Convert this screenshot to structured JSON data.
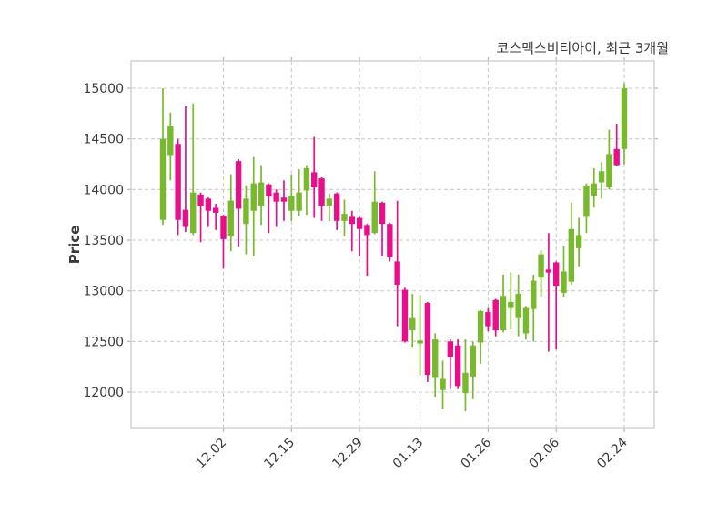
{
  "chart_data": {
    "type": "candlestick",
    "title": "코스맥스비티아이, 최근 3개월",
    "ylabel": "Price",
    "y_ticks": [
      15000,
      14500,
      14000,
      13500,
      13000,
      12500,
      12000
    ],
    "ylim": [
      11640,
      15270
    ],
    "x_ticks": [
      {
        "label": "12.02",
        "candle_index": 8
      },
      {
        "label": "12.15",
        "candle_index": 17
      },
      {
        "label": "12.29",
        "candle_index": 26
      },
      {
        "label": "01.13",
        "candle_index": 34
      },
      {
        "label": "01.26",
        "candle_index": 43
      },
      {
        "label": "02.06",
        "candle_index": 52
      },
      {
        "label": "02.24",
        "candle_index": 61
      }
    ],
    "grid": "dashed",
    "legend": "none",
    "up_color": "#78B92D",
    "down_color": "#E8108A",
    "candles_format": [
      "open",
      "high",
      "low",
      "close"
    ],
    "candles": [
      [
        13700,
        15000,
        13650,
        14500
      ],
      [
        14340,
        14760,
        14090,
        14630
      ],
      [
        14450,
        14500,
        13550,
        13700
      ],
      [
        13800,
        14830,
        13580,
        13630
      ],
      [
        13570,
        14850,
        13550,
        13970
      ],
      [
        13950,
        13970,
        13480,
        13840
      ],
      [
        13910,
        13920,
        13630,
        13790
      ],
      [
        13820,
        13860,
        13600,
        13770
      ],
      [
        13740,
        13750,
        13220,
        13510
      ],
      [
        13540,
        14150,
        13390,
        13890
      ],
      [
        14280,
        14300,
        13430,
        13810
      ],
      [
        13660,
        14040,
        13360,
        13910
      ],
      [
        13790,
        14320,
        13340,
        14060
      ],
      [
        13840,
        14240,
        13650,
        14070
      ],
      [
        14050,
        14060,
        13570,
        13930
      ],
      [
        13970,
        14000,
        13630,
        13880
      ],
      [
        13920,
        14090,
        13690,
        13880
      ],
      [
        13790,
        14150,
        13690,
        13940
      ],
      [
        13790,
        14200,
        13740,
        13970
      ],
      [
        13990,
        14240,
        13750,
        14210
      ],
      [
        14170,
        14520,
        13720,
        14020
      ],
      [
        14110,
        14120,
        13690,
        13840
      ],
      [
        13840,
        13960,
        13690,
        13910
      ],
      [
        13960,
        13970,
        13600,
        13690
      ],
      [
        13690,
        13900,
        13540,
        13760
      ],
      [
        13730,
        13790,
        13390,
        13660
      ],
      [
        13720,
        13730,
        13340,
        13610
      ],
      [
        13650,
        13660,
        13150,
        13550
      ],
      [
        13570,
        14180,
        13560,
        13880
      ],
      [
        13870,
        13880,
        13340,
        13660
      ],
      [
        13660,
        13670,
        13290,
        13330
      ],
      [
        13290,
        13890,
        12650,
        13060
      ],
      [
        13010,
        13030,
        12490,
        12500
      ],
      [
        12610,
        12970,
        12440,
        12730
      ],
      [
        12480,
        12960,
        12170,
        12510
      ],
      [
        12880,
        12890,
        12100,
        12170
      ],
      [
        12140,
        12580,
        11950,
        12520
      ],
      [
        12020,
        12310,
        11830,
        12130
      ],
      [
        12500,
        12520,
        12030,
        12350
      ],
      [
        12460,
        12520,
        12030,
        12060
      ],
      [
        11990,
        12520,
        11810,
        12190
      ],
      [
        12150,
        12500,
        11930,
        12460
      ],
      [
        12490,
        12810,
        12280,
        12800
      ],
      [
        12790,
        12830,
        12600,
        12650
      ],
      [
        12910,
        12920,
        12550,
        12610
      ],
      [
        12610,
        13160,
        12590,
        12950
      ],
      [
        12830,
        13180,
        12620,
        12890
      ],
      [
        12730,
        13160,
        12550,
        12970
      ],
      [
        12580,
        12850,
        12520,
        12830
      ],
      [
        12820,
        13160,
        12500,
        13100
      ],
      [
        13130,
        13400,
        12940,
        13360
      ],
      [
        13210,
        13570,
        12400,
        13180
      ],
      [
        13280,
        13290,
        12420,
        13050
      ],
      [
        12980,
        13440,
        12940,
        13190
      ],
      [
        13090,
        13870,
        13060,
        13610
      ],
      [
        13420,
        13720,
        13240,
        13550
      ],
      [
        13730,
        14060,
        13570,
        14040
      ],
      [
        13940,
        14210,
        13820,
        14060
      ],
      [
        14070,
        14270,
        13910,
        14180
      ],
      [
        14020,
        14590,
        14000,
        14350
      ],
      [
        14400,
        14650,
        14230,
        14240
      ],
      [
        14400,
        15050,
        14250,
        15000
      ]
    ]
  },
  "style": {
    "grid_color": "#cbcbcb",
    "spine_color": "#c8c8c8",
    "tick_color": "#b5b5b5",
    "text_color": "#3c3c3c"
  }
}
